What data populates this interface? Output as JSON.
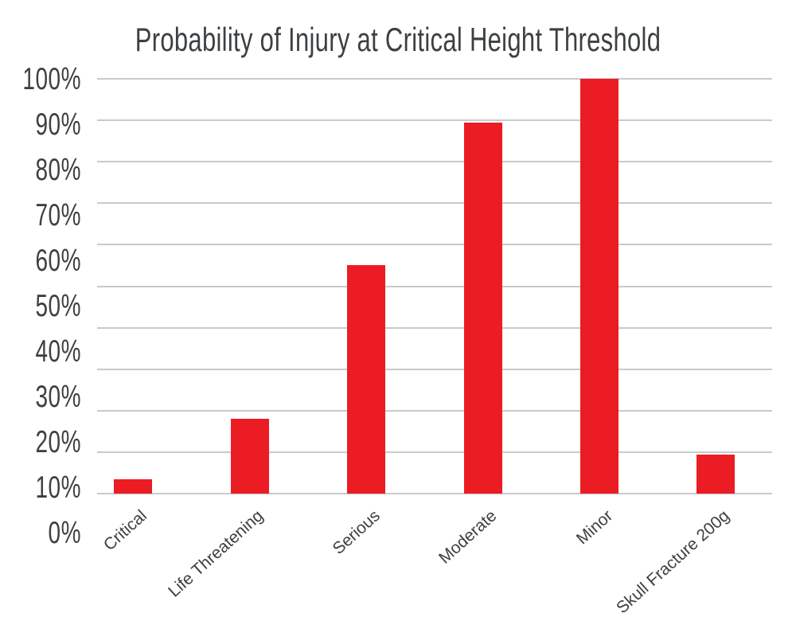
{
  "title": "Probability of Injury at Critical Height Threshold",
  "chart_data": {
    "type": "bar",
    "title": "Probability of Injury at Critical Height Threshold",
    "categories": [
      "Critical",
      "Life Threatening",
      "Serious",
      "Moderate",
      "Minor",
      "Skull Fracture 200g"
    ],
    "values": [
      3.5,
      18,
      55,
      89.5,
      100,
      9.5
    ],
    "unit": "%",
    "xlabel": "",
    "ylabel": "",
    "ylim": [
      0,
      100
    ],
    "y_tick_step": 10,
    "y_tick_labels": [
      "0%",
      "10%",
      "20%",
      "30%",
      "40%",
      "50%",
      "60%",
      "70%",
      "80%",
      "90%",
      "100%"
    ],
    "grid": "horizontal-only",
    "legend": "none",
    "bar_color": "#ec1c24",
    "gridline_color": "#c9cacc",
    "text_color": "#3d4043",
    "background_color": "#ffffff"
  }
}
